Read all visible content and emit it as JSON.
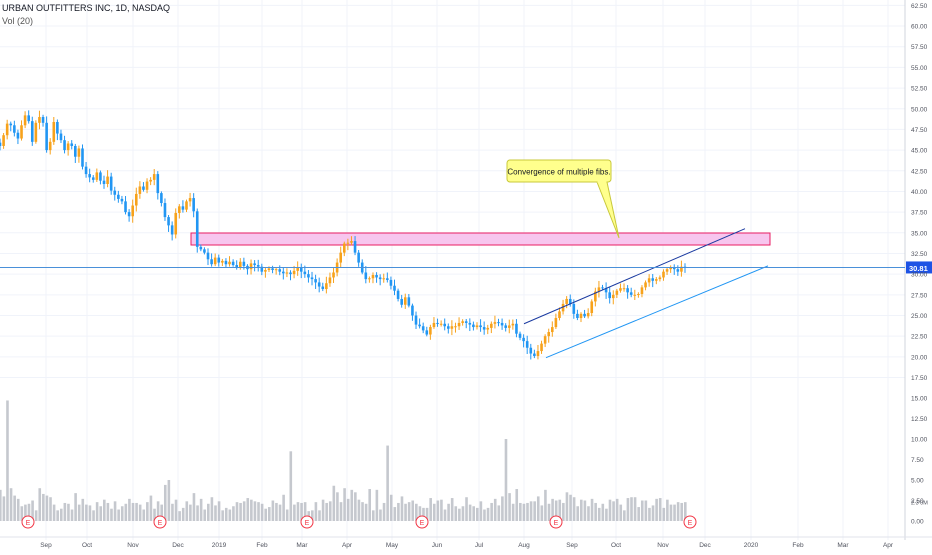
{
  "header": {
    "title": "URBAN OUTFITTERS INC, 1D, NASDAQ",
    "volume_label": "Vol (20)"
  },
  "chart_data": [
    {
      "type": "candlestick",
      "title": "URBAN OUTFITTERS INC, 1D, NASDAQ",
      "colors": {
        "up": "#f7a21b",
        "down": "#2196f3",
        "grid": "#f0f3fa",
        "price_line": "#4a90d9"
      },
      "x_ticks": [
        "Sep",
        "Oct",
        "Nov",
        "Dec",
        "2019",
        "Feb",
        "Mar",
        "Apr",
        "May",
        "Jun",
        "Jul",
        "Aug",
        "Sep",
        "Oct",
        "Nov",
        "Dec",
        "2020",
        "Feb",
        "Mar",
        "Apr"
      ],
      "y_ticks": [
        "62.50",
        "60.00",
        "57.50",
        "55.00",
        "52.50",
        "50.00",
        "47.50",
        "45.00",
        "42.50",
        "40.00",
        "37.50",
        "35.00",
        "32.50",
        "30.00",
        "27.50",
        "25.00",
        "22.50",
        "20.00",
        "17.50"
      ],
      "ylim": [
        17.5,
        62.5
      ],
      "last_price": "30.81",
      "closes": [
        45.5,
        46.8,
        48.2,
        48.0,
        47.1,
        46.4,
        48.0,
        49.2,
        48.5,
        46.0,
        48.3,
        49.0,
        48.3,
        45.0,
        46.0,
        48.4,
        47.0,
        46.2,
        45.0,
        45.8,
        45.5,
        44.2,
        45.2,
        43.0,
        42.1,
        41.7,
        41.4,
        42.3,
        41.3,
        40.9,
        41.8,
        40.1,
        39.6,
        39.1,
        38.8,
        37.5,
        37.0,
        38.3,
        39.7,
        40.6,
        40.2,
        41.2,
        41.4,
        42.1,
        39.8,
        38.6,
        36.9,
        35.9,
        34.8,
        37.4,
        38.2,
        37.8,
        38.8,
        39.2,
        37.6,
        33.3,
        33.0,
        32.6,
        31.8,
        31.2,
        32.0,
        31.4,
        31.6,
        31.2,
        31.5,
        31.1,
        30.8,
        31.5,
        31.0,
        30.6,
        31.3,
        31.1,
        30.9,
        30.3,
        30.5,
        30.7,
        30.5,
        30.6,
        30.3,
        30.1,
        30.2,
        30.0,
        30.4,
        30.8,
        30.3,
        30.0,
        29.6,
        29.4,
        29.0,
        28.5,
        28.2,
        28.9,
        29.6,
        30.2,
        31.4,
        32.6,
        33.7,
        33.8,
        34.0,
        32.6,
        31.4,
        30.2,
        29.4,
        29.5,
        29.9,
        29.6,
        29.4,
        29.5,
        29.3,
        28.6,
        28.0,
        27.0,
        26.3,
        27.2,
        26.2,
        25.0,
        23.9,
        23.7,
        23.2,
        22.7,
        23.6,
        24.1,
        24.0,
        24.0,
        23.7,
        23.4,
        23.7,
        23.7,
        24.1,
        24.3,
        24.1,
        23.9,
        23.6,
        23.8,
        23.6,
        23.3,
        23.5,
        24.0,
        24.2,
        24.1,
        23.8,
        23.5,
        23.8,
        24.0,
        22.8,
        22.3,
        21.9,
        21.1,
        20.4,
        20.1,
        20.7,
        21.6,
        22.5,
        23.0,
        23.6,
        24.7,
        25.5,
        26.4,
        27.0,
        26.4,
        25.2,
        24.7,
        25.2,
        24.9,
        25.3,
        26.7,
        27.9,
        28.4,
        28.3,
        27.8,
        27.1,
        27.5,
        28.0,
        28.3,
        28.3,
        27.8,
        27.5,
        27.5,
        27.6,
        28.4,
        29.0,
        29.5,
        29.2,
        29.4,
        29.6,
        30.3,
        30.6,
        30.8,
        30.6,
        30.3,
        30.9,
        30.8
      ],
      "volume": {
        "y_ticks": [
          "15.00",
          "12.50",
          "10.00",
          "7.50",
          "5.00",
          "2.50",
          "0.00"
        ],
        "ylim": [
          0,
          15
        ],
        "last_label": "2.3 0M",
        "values": [
          3.8,
          3.0,
          14.7,
          4.0,
          3.1,
          2.7,
          1.8,
          2.0,
          2.1,
          2.5,
          1.3,
          4.0,
          3.3,
          3.1,
          2.9,
          2.0,
          1.3,
          1.5,
          2.2,
          2.1,
          1.4,
          3.4,
          2.0,
          2.7,
          2.0,
          1.9,
          1.3,
          2.3,
          1.8,
          2.6,
          2.2,
          1.5,
          2.4,
          1.4,
          1.8,
          2.1,
          2.7,
          2.2,
          2.2,
          2.0,
          1.4,
          2.3,
          3.1,
          1.5,
          2.4,
          2.0,
          4.4,
          5.0,
          2.1,
          2.6,
          1.2,
          1.6,
          2.4,
          2.0,
          3.4,
          1.9,
          2.7,
          1.4,
          2.1,
          2.9,
          1.9,
          2.4,
          1.3,
          1.6,
          1.4,
          1.8,
          2.3,
          2.2,
          2.4,
          2.8,
          2.6,
          2.4,
          2.3,
          2.1,
          1.5,
          1.7,
          2.5,
          2.2,
          2.0,
          3.2,
          1.4,
          8.5,
          2.0,
          2.3,
          2.2,
          2.3,
          1.2,
          1.3,
          2.3,
          1.3,
          2.6,
          2.2,
          2.4,
          4.3,
          3.5,
          2.3,
          4.0,
          2.7,
          3.8,
          3.5,
          2.6,
          2.3,
          2.1,
          3.9,
          1.3,
          3.8,
          1.4,
          2.2,
          9.2,
          3.2,
          1.7,
          2.2,
          3.0,
          2.1,
          2.3,
          2.5,
          2.1,
          1.8,
          1.6,
          1.6,
          2.8,
          2.1,
          2.5,
          2.6,
          1.4,
          2.1,
          2.8,
          1.8,
          1.5,
          1.8,
          2.9,
          2.0,
          1.8,
          1.6,
          2.4,
          1.4,
          1.6,
          2.2,
          2.7,
          1.9,
          3.0,
          10.0,
          3.4,
          2.1,
          3.9,
          2.2,
          2.1,
          2.2,
          2.4,
          2.4,
          3.0,
          1.9,
          3.8,
          2.1,
          2.7,
          2.5,
          2.6,
          2.2,
          3.5,
          3.2,
          2.9,
          1.8,
          2.6,
          2.5,
          1.8,
          2.7,
          2.2,
          1.6,
          2.1,
          1.5,
          2.6,
          2.4,
          2.7,
          2.0,
          1.3,
          2.8,
          2.9,
          2.9,
          1.7,
          2.5,
          2.5,
          1.6,
          1.9,
          2.7,
          2.8,
          1.6,
          2.6,
          2.0,
          2.0,
          2.3,
          2.2,
          2.3
        ]
      },
      "earnings_markers": [
        "E",
        "E",
        "E",
        "E",
        "E",
        "E"
      ],
      "annotation": "Convergence of multiple fibs."
    }
  ]
}
